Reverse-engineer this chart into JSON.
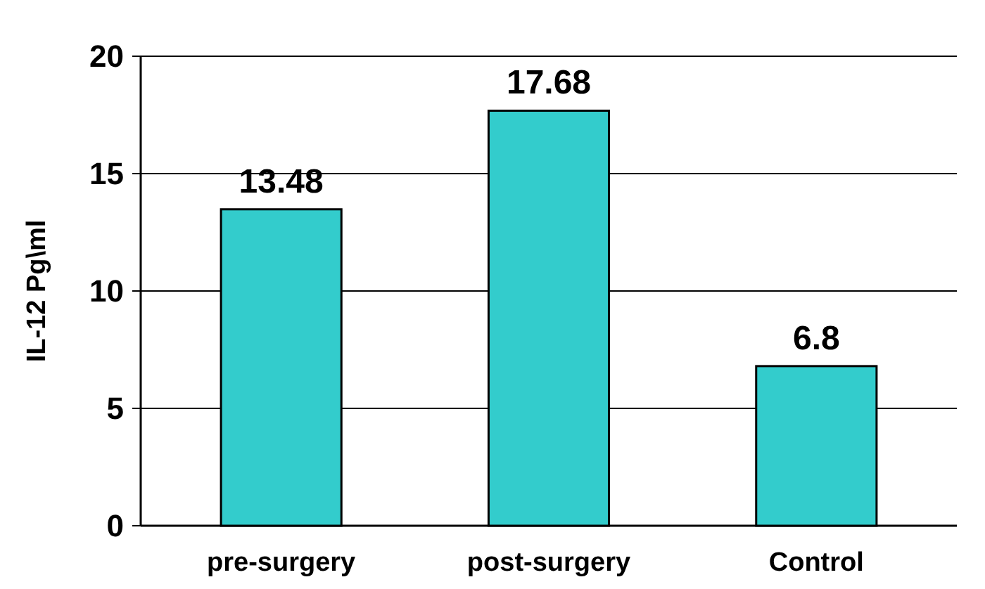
{
  "chart_data": {
    "type": "bar",
    "ylabel": "IL-12 Pg\\ml",
    "categories": [
      "pre-surgery",
      "post-surgery",
      "Control"
    ],
    "values": [
      13.48,
      17.68,
      6.8
    ],
    "color": "#33cccc",
    "ylim": [
      0,
      20
    ],
    "yticks": [
      0,
      5,
      10,
      15,
      20
    ],
    "grid": "y",
    "data_labels": true
  }
}
